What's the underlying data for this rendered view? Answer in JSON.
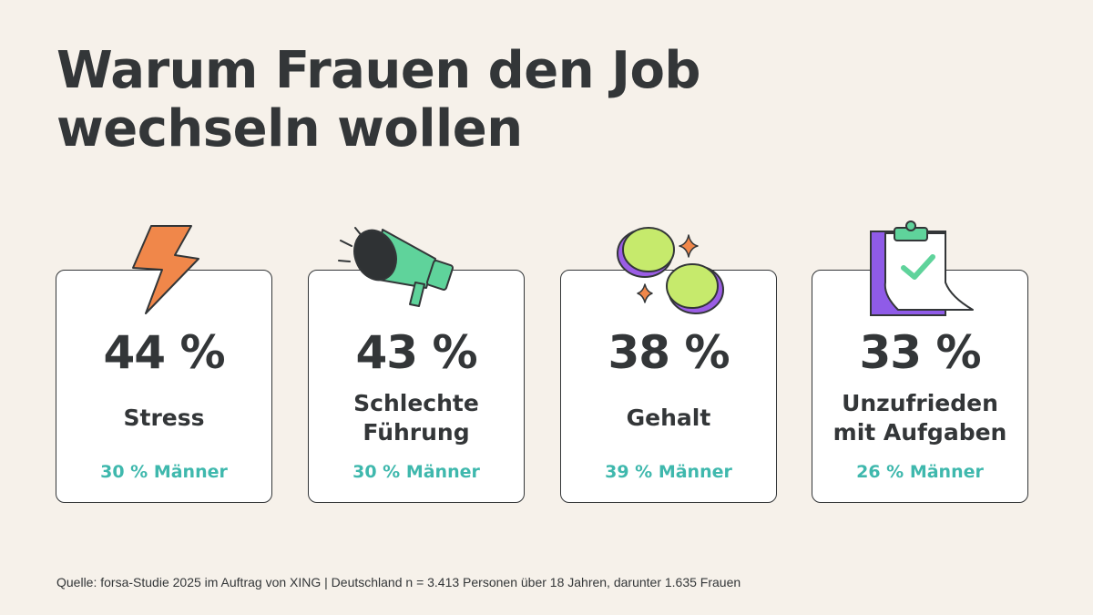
{
  "title": "Warum Frauen den Job wechseln wollen",
  "chart_data": {
    "type": "table",
    "columns": [
      "Frauen",
      "Männer"
    ],
    "items": [
      {
        "label": "Stress",
        "women_pct": 44,
        "women_display": "44 %",
        "men_pct": 30,
        "men_display": "30 % Männer",
        "icon": "lightning-icon"
      },
      {
        "label": "Schlechte\nFührung",
        "women_pct": 43,
        "women_display": "43 %",
        "men_pct": 30,
        "men_display": "30 % Männer",
        "icon": "megaphone-icon"
      },
      {
        "label": "Gehalt",
        "women_pct": 38,
        "women_display": "38 %",
        "men_pct": 39,
        "men_display": "39 % Männer",
        "icon": "coins-icon"
      },
      {
        "label": "Unzufrieden\nmit Aufgaben",
        "women_pct": 33,
        "women_display": "33 %",
        "men_pct": 26,
        "men_display": "26 % Männer",
        "icon": "clipboard-icon"
      }
    ]
  },
  "source": "Quelle: forsa-Studie 2025 im Auftrag von XING | Deutschland n = 3.413 Personen über 18 Jahren, darunter 1.635 Frauen",
  "colors": {
    "background": "#f6f1ea",
    "text": "#333638",
    "men_accent": "#3fb8ad",
    "lightning": "#f0874a",
    "megaphone": "#5fd39b",
    "coin_face": "#c6ea6c",
    "coin_edge": "#9b5de5",
    "sparkle": "#f0874a",
    "clipboard_purple": "#8f5be8"
  }
}
